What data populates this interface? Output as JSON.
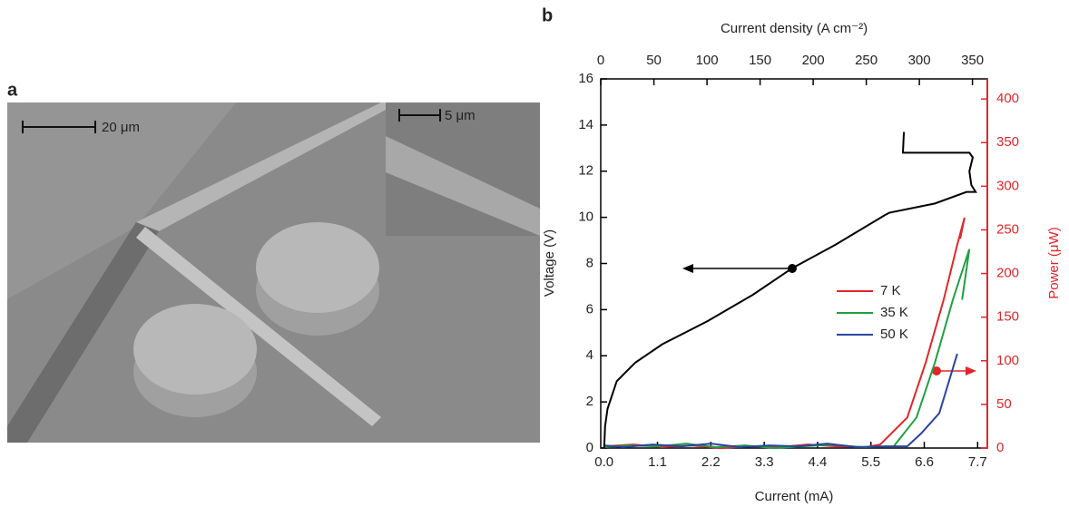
{
  "panel_a": {
    "label": "a",
    "scale_bar": "20 μm",
    "inset_scale_bar": "5 μm"
  },
  "chart_data": {
    "type": "line",
    "label": "b",
    "xlabel": "Current (mA)",
    "ylabel": "Voltage (V)",
    "y2label": "Power (μW)",
    "x2label": "Current density (A cm⁻²)",
    "xlim": [
      -0.07,
      7.9
    ],
    "ylim": [
      0,
      16
    ],
    "y2lim": [
      0,
      423
    ],
    "x2lim": [
      -0.06,
      364
    ],
    "xticks": [
      {
        "value": 0,
        "label": "0.0"
      },
      {
        "value": 1.1,
        "label": "1.1"
      },
      {
        "value": 2.2,
        "label": "2.2"
      },
      {
        "value": 3.3,
        "label": "3.3"
      },
      {
        "value": 4.4,
        "label": "4.4"
      },
      {
        "value": 5.5,
        "label": "5.5"
      },
      {
        "value": 6.6,
        "label": "6.6"
      },
      {
        "value": 7.7,
        "label": "7.7"
      }
    ],
    "yticks": [
      0,
      2,
      4,
      6,
      8,
      10,
      12,
      14,
      16
    ],
    "y2ticks": [
      0,
      50,
      100,
      150,
      200,
      250,
      300,
      350,
      400
    ],
    "x2ticks": [
      0,
      50,
      100,
      150,
      200,
      250,
      300,
      350
    ],
    "voltage": {
      "color": "#000000",
      "x": [
        0,
        0.02,
        0.07,
        0.26,
        0.64,
        1.2,
        2.13,
        3.07,
        3.88,
        4.76,
        5.79,
        5.88,
        6.82,
        7.47,
        7.66,
        7.57,
        7.53,
        7.6,
        7.53,
        6.16,
        6.18
      ],
      "values": [
        0,
        0.95,
        1.7,
        2.9,
        3.7,
        4.5,
        5.5,
        6.65,
        7.8,
        8.8,
        10.1,
        10.2,
        10.6,
        11.1,
        11.1,
        11.4,
        12.0,
        12.6,
        12.8,
        12.8,
        13.7
      ]
    },
    "series": [
      {
        "name": "7 K",
        "color": "#e0262a",
        "axis": "y2",
        "x": [
          0,
          0.6,
          1.2,
          1.8,
          2.4,
          3.0,
          3.6,
          4.2,
          4.8,
          5.4,
          5.69,
          6.25,
          6.63,
          7.0,
          7.28,
          7.43,
          7.34
        ],
        "values": [
          2,
          4,
          1,
          3,
          0,
          2,
          1,
          4,
          2,
          1,
          4,
          35,
          98,
          170,
          233,
          264,
          240
        ]
      },
      {
        "name": "35 K",
        "color": "#1fa043",
        "axis": "y2",
        "x": [
          0,
          0.5,
          1.1,
          1.7,
          2.3,
          2.9,
          3.5,
          4.1,
          4.7,
          5.3,
          5.97,
          6.44,
          6.82,
          7.19,
          7.53,
          7.38
        ],
        "values": [
          1,
          3,
          2,
          5,
          1,
          3,
          0,
          2,
          4,
          1,
          2,
          35,
          98,
          170,
          228,
          170
        ]
      },
      {
        "name": "50 K",
        "color": "#2744a0",
        "axis": "y2",
        "x": [
          0,
          0.4,
          1.0,
          1.6,
          2.2,
          2.8,
          3.4,
          4.0,
          4.6,
          5.2,
          5.8,
          6.25,
          6.54,
          6.91,
          7.28
        ],
        "values": [
          3,
          1,
          4,
          2,
          5,
          1,
          3,
          2,
          5,
          1,
          2,
          2,
          17,
          40,
          108
        ]
      }
    ]
  }
}
